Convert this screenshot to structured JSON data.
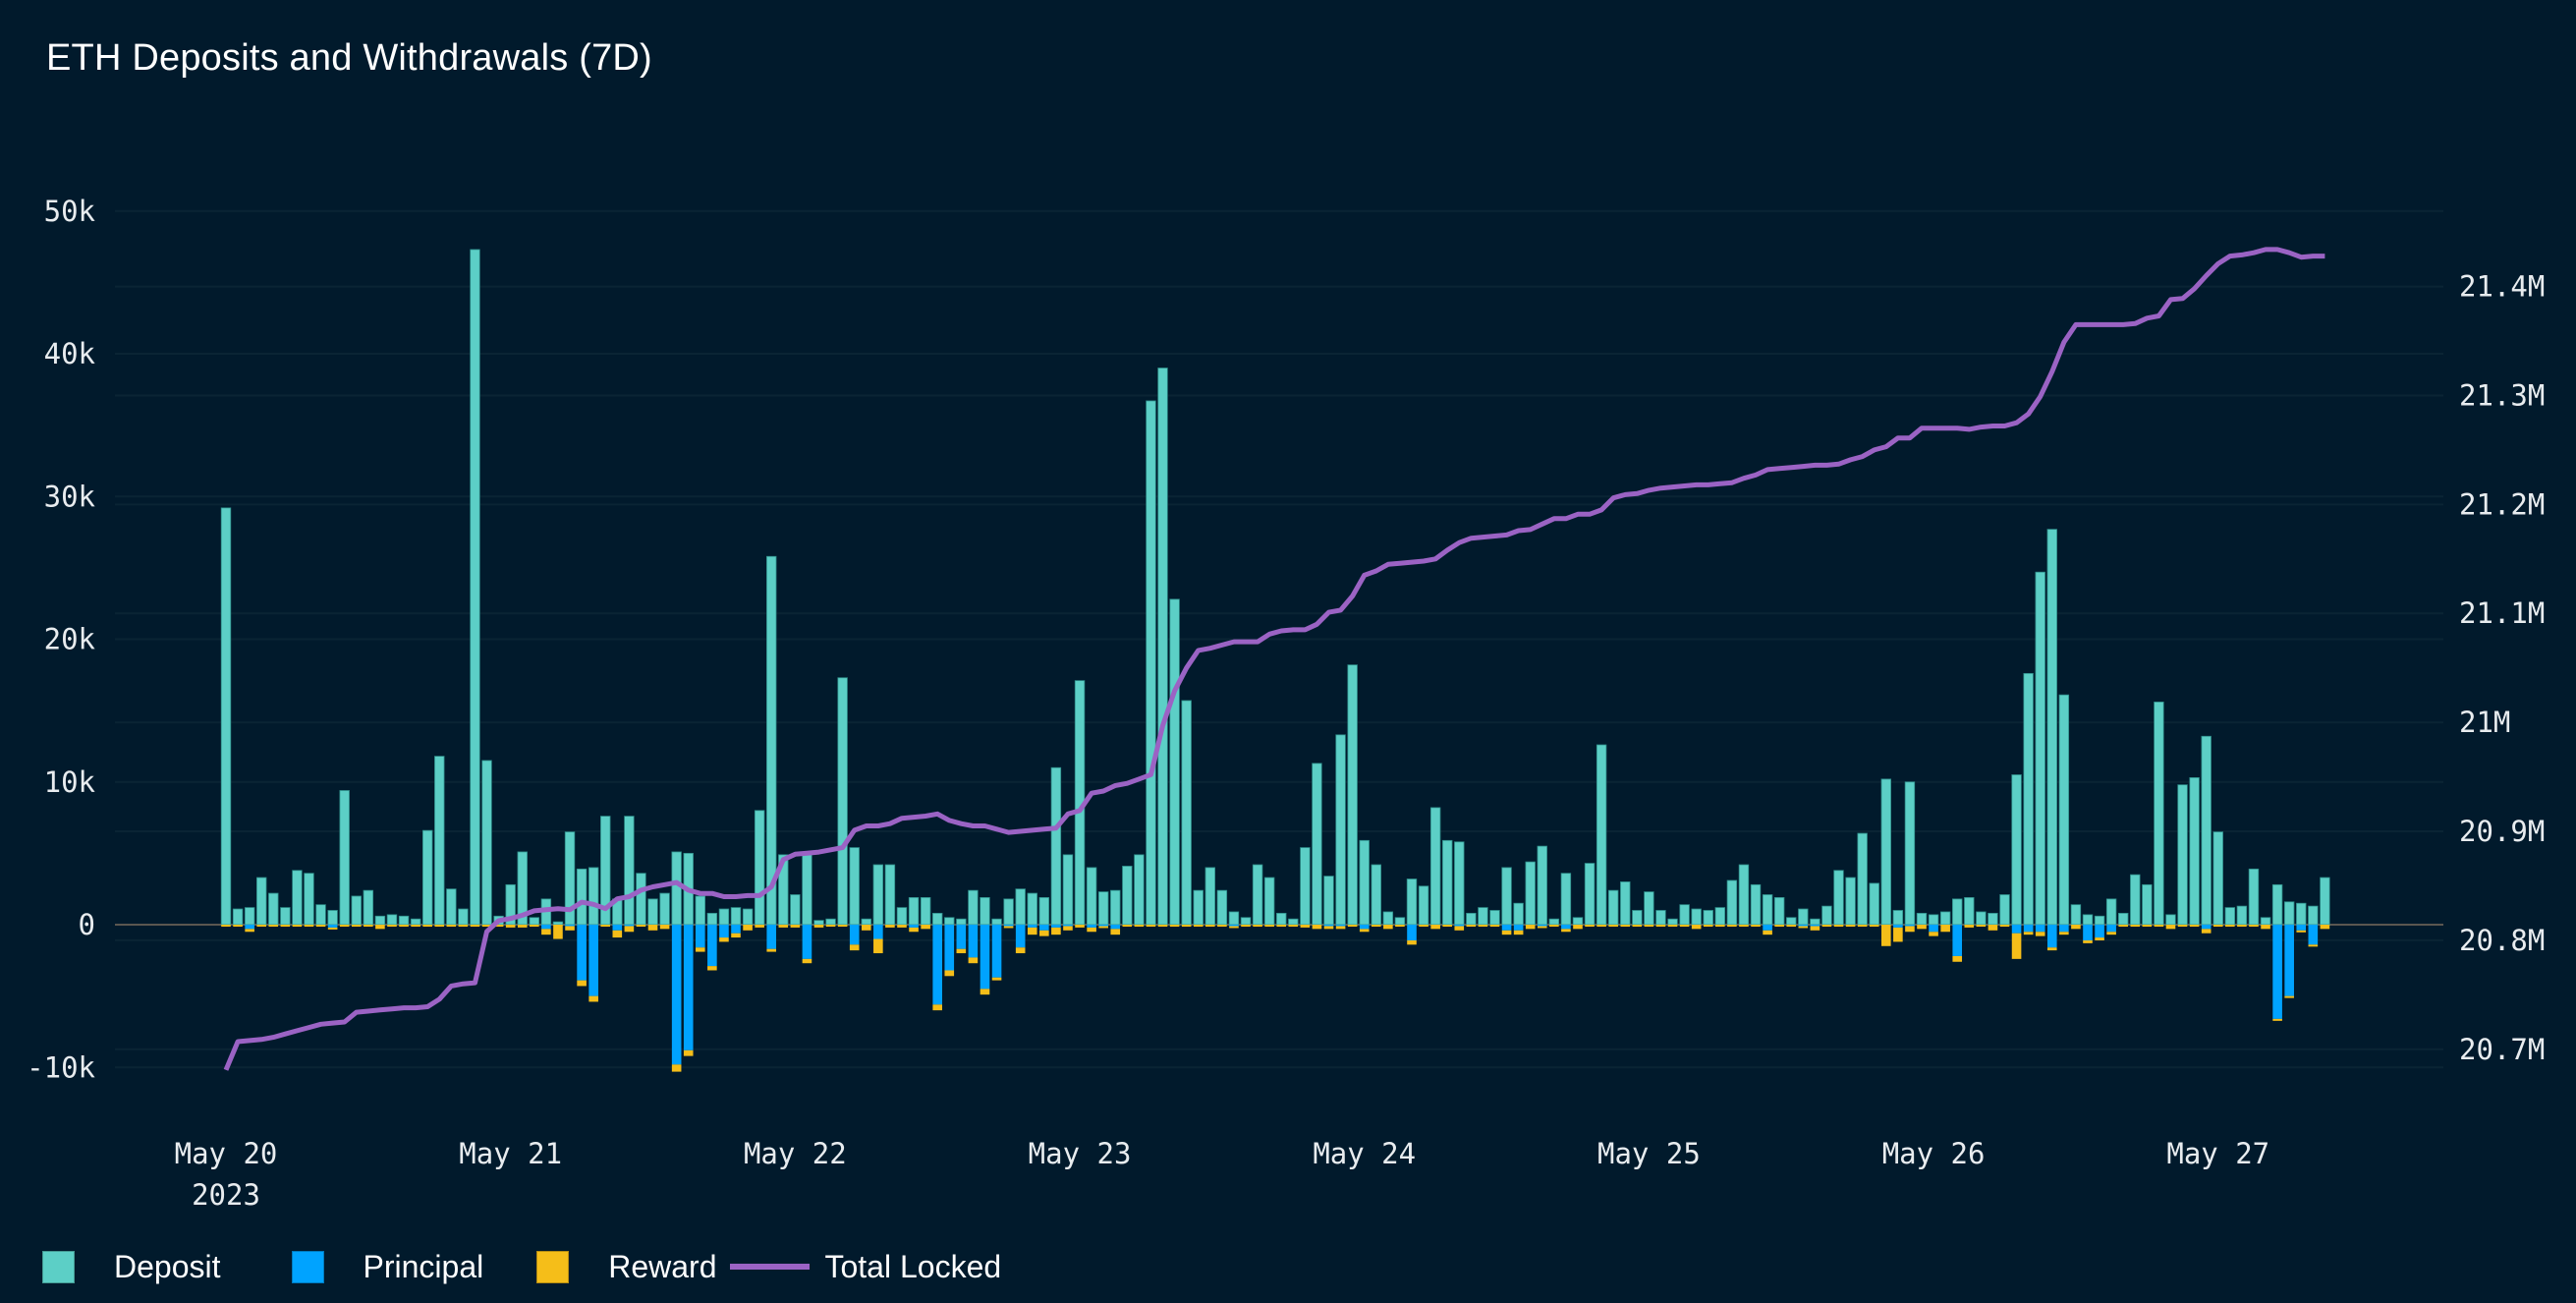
{
  "title": "ETH Deposits and Withdrawals (7D)",
  "legend": [
    {
      "label": "Deposit",
      "color": "#5ccfc6",
      "shape": "square"
    },
    {
      "label": "Principal",
      "color": "#00a3ff",
      "shape": "square"
    },
    {
      "label": "Reward",
      "color": "#f5be19",
      "shape": "square"
    },
    {
      "label": "Total Locked",
      "color": "#9b63c4",
      "shape": "line"
    }
  ],
  "chart_data": {
    "type": "bar",
    "stacked": true,
    "title": "ETH Deposits and Withdrawals (7D)",
    "x_start": "2023-05-20T00:00",
    "x_step": "1h",
    "x_ticks": [
      {
        "label": "May 20",
        "sublabel": "2023"
      },
      {
        "label": "May 21"
      },
      {
        "label": "May 22"
      },
      {
        "label": "May 23"
      },
      {
        "label": "May 24"
      },
      {
        "label": "May 25"
      },
      {
        "label": "May 26"
      },
      {
        "label": "May 27"
      }
    ],
    "y_left": {
      "ticks": [
        50000,
        40000,
        30000,
        20000,
        10000,
        0,
        -10000
      ],
      "tick_labels": [
        "50k",
        "40k",
        "30k",
        "20k",
        "10k",
        "0",
        "-10k"
      ]
    },
    "y_right": {
      "ticks": [
        21400000,
        21300000,
        21200000,
        21100000,
        21000000,
        20900000,
        20800000,
        20700000
      ],
      "tick_labels": [
        "21.4M",
        "21.3M",
        "21.2M",
        "21.1M",
        "21M",
        "20.9M",
        "20.8M",
        "20.7M"
      ]
    },
    "grid": true,
    "legend_position": "bottom-left",
    "series": [
      {
        "name": "Deposit",
        "axis": "left",
        "color": "#5ccfc6",
        "values": [
          29200,
          1100,
          1200,
          3300,
          2200,
          1200,
          3800,
          3600,
          1400,
          1000,
          9400,
          2000,
          2400,
          600,
          700,
          600,
          400,
          6600,
          11800,
          2500,
          1100,
          47300,
          11500,
          600,
          2800,
          5100,
          500,
          1800,
          200,
          6500,
          3900,
          4000,
          7600,
          1800,
          7600,
          3600,
          1800,
          2200,
          5100,
          5000,
          2000,
          800,
          1100,
          1200,
          1100,
          8000,
          25800,
          4900,
          2100,
          5000,
          300,
          400,
          17300,
          5400,
          400,
          4200,
          4200,
          1200,
          1900,
          1900,
          800,
          500,
          400,
          2400,
          1900,
          400,
          1800,
          2500,
          2200,
          1900,
          11000,
          4900,
          17100,
          4000,
          2300,
          2400,
          4100,
          4900,
          36700,
          39000,
          22800,
          15700,
          2400,
          4000,
          2400,
          900,
          500,
          4200,
          3300,
          800,
          400,
          5400,
          11300,
          3400,
          13300,
          18200,
          5900,
          4200,
          900,
          500,
          3200,
          2700,
          8200,
          5900,
          5800,
          800,
          1200,
          1000,
          4000,
          1500,
          4400,
          5500,
          400,
          3600,
          500,
          4300,
          12600,
          2400,
          3000,
          1000,
          2300,
          1000,
          400,
          1400,
          1100,
          1000,
          1200,
          3100,
          4200,
          2800,
          2100,
          1900,
          500,
          1100,
          400,
          1300,
          3800,
          3300,
          6400,
          2900,
          10200,
          1000,
          10000,
          800,
          700,
          900,
          1800,
          1900,
          900,
          800,
          2100,
          10500,
          17600,
          24700,
          27700,
          16100,
          1400,
          700,
          600,
          1800,
          800,
          3500,
          2800,
          15600,
          700,
          9800,
          10300,
          13200,
          6500,
          1200,
          1300,
          3900,
          500,
          2800,
          1600,
          1500,
          1300,
          3300
        ]
      },
      {
        "name": "Principal",
        "axis": "left",
        "color": "#00a3ff",
        "values": [
          0,
          0,
          -300,
          0,
          0,
          0,
          0,
          0,
          0,
          -200,
          0,
          0,
          0,
          0,
          0,
          0,
          0,
          0,
          0,
          0,
          0,
          0,
          0,
          0,
          0,
          0,
          0,
          -300,
          0,
          -100,
          -3900,
          -5000,
          0,
          -400,
          -100,
          0,
          0,
          0,
          -9800,
          -8800,
          -1600,
          -2900,
          -900,
          -600,
          0,
          0,
          -1700,
          0,
          0,
          -2400,
          0,
          0,
          0,
          -1400,
          0,
          -1000,
          0,
          0,
          -200,
          0,
          -5600,
          -3200,
          -1700,
          -2300,
          -4500,
          -3700,
          -100,
          -1600,
          -200,
          -400,
          -200,
          -100,
          0,
          -200,
          -100,
          -300,
          0,
          0,
          0,
          0,
          0,
          0,
          0,
          0,
          0,
          -100,
          0,
          0,
          0,
          0,
          0,
          0,
          0,
          -100,
          -100,
          0,
          -300,
          0,
          0,
          0,
          -1100,
          0,
          0,
          0,
          -100,
          0,
          0,
          0,
          -400,
          -400,
          0,
          -100,
          0,
          -300,
          0,
          0,
          0,
          0,
          0,
          0,
          0,
          0,
          0,
          0,
          0,
          0,
          0,
          0,
          0,
          0,
          -400,
          0,
          0,
          -100,
          -100,
          0,
          0,
          0,
          0,
          0,
          0,
          -200,
          -100,
          0,
          -500,
          0,
          -2200,
          0,
          0,
          0,
          0,
          -600,
          -500,
          -500,
          -1600,
          -500,
          0,
          -1100,
          -900,
          -500,
          0,
          0,
          0,
          0,
          0,
          0,
          0,
          -300,
          0,
          0,
          0,
          0,
          0,
          -6600,
          -5000,
          -400,
          -1400,
          0
        ]
      },
      {
        "name": "Reward",
        "axis": "left",
        "color": "#f5be19",
        "values": [
          -100,
          -100,
          -200,
          -100,
          -100,
          -100,
          -100,
          -100,
          -100,
          -100,
          -100,
          -100,
          -100,
          -300,
          -100,
          -100,
          -100,
          -100,
          -100,
          -100,
          -100,
          -100,
          -100,
          -100,
          -200,
          -200,
          -100,
          -400,
          -1000,
          -300,
          -400,
          -400,
          -100,
          -500,
          -400,
          -100,
          -400,
          -300,
          -500,
          -400,
          -300,
          -300,
          -300,
          -300,
          -400,
          -200,
          -200,
          -200,
          -200,
          -300,
          -200,
          -100,
          -100,
          -400,
          -400,
          -1000,
          -200,
          -200,
          -300,
          -300,
          -400,
          -400,
          -300,
          -400,
          -400,
          -200,
          -100,
          -400,
          -500,
          -400,
          -500,
          -300,
          -200,
          -300,
          -100,
          -400,
          -100,
          -100,
          -100,
          -100,
          -100,
          -100,
          -100,
          -100,
          -100,
          -100,
          -100,
          -100,
          -100,
          -100,
          -100,
          -200,
          -300,
          -200,
          -200,
          -100,
          -200,
          -100,
          -300,
          -100,
          -300,
          -100,
          -300,
          -100,
          -300,
          -100,
          -100,
          -100,
          -300,
          -300,
          -300,
          -100,
          -100,
          -200,
          -300,
          -100,
          -100,
          -100,
          -100,
          -100,
          -100,
          -100,
          -100,
          -100,
          -300,
          -100,
          -100,
          -100,
          -100,
          -100,
          -300,
          -100,
          -100,
          -100,
          -300,
          -100,
          -100,
          -100,
          -100,
          -100,
          -1500,
          -1000,
          -400,
          -300,
          -300,
          -500,
          -400,
          -200,
          -100,
          -400,
          -100,
          -1800,
          -200,
          -300,
          -200,
          -200,
          -300,
          -200,
          -200,
          -200,
          -100,
          -100,
          -100,
          -100,
          -300,
          -100,
          -100,
          -300,
          -100,
          -100,
          -100,
          -100,
          -300,
          -100,
          -100,
          -100,
          -100,
          -300
        ]
      },
      {
        "name": "Total Locked",
        "axis": "right",
        "type": "line",
        "color": "#9b63c4",
        "values": [
          20681000,
          20707000,
          20708000,
          20709000,
          20711000,
          20714000,
          20717000,
          20720000,
          20723000,
          20724000,
          20725000,
          20734000,
          20735000,
          20736000,
          20737000,
          20738000,
          20738000,
          20739000,
          20746000,
          20758000,
          20760000,
          20761000,
          20808000,
          20818000,
          20820000,
          20823000,
          20827000,
          20828000,
          20829000,
          20828000,
          20835000,
          20833000,
          20829000,
          20838000,
          20840000,
          20846000,
          20849000,
          20851000,
          20853000,
          20846000,
          20843000,
          20843000,
          20840000,
          20840000,
          20841000,
          20841000,
          20849000,
          20874000,
          20879000,
          20880000,
          20881000,
          20883000,
          20885000,
          20901000,
          20905000,
          20905000,
          20907000,
          20912000,
          20913000,
          20914000,
          20916000,
          20910000,
          20907000,
          20905000,
          20905000,
          20902000,
          20899000,
          20900000,
          20901000,
          20902000,
          20903000,
          20916000,
          20919000,
          20935000,
          20937000,
          20942000,
          20944000,
          20948000,
          20952000,
          20997000,
          21029000,
          21050000,
          21066000,
          21068000,
          21071000,
          21074000,
          21074000,
          21074000,
          21081000,
          21084000,
          21085000,
          21085000,
          21090000,
          21101000,
          21103000,
          21116000,
          21135000,
          21139000,
          21145000,
          21146000,
          21147000,
          21148000,
          21150000,
          21158000,
          21165000,
          21169000,
          21170000,
          21171000,
          21172000,
          21176000,
          21177000,
          21182000,
          21187000,
          21187000,
          21191000,
          21191000,
          21195000,
          21206000,
          21209000,
          21210000,
          21213000,
          21215000,
          21216000,
          21217000,
          21218000,
          21218000,
          21219000,
          21220000,
          21224000,
          21227000,
          21232000,
          21233000,
          21234000,
          21235000,
          21236000,
          21236000,
          21237000,
          21241000,
          21244000,
          21250000,
          21253000,
          21261000,
          21261000,
          21270000,
          21270000,
          21270000,
          21270000,
          21269000,
          21271000,
          21272000,
          21272000,
          21275000,
          21283000,
          21299000,
          21322000,
          21349000,
          21365000,
          21365000,
          21365000,
          21365000,
          21365000,
          21366000,
          21371000,
          21373000,
          21388000,
          21389000,
          21398000,
          21410000,
          21421000,
          21428000,
          21429000,
          21431000,
          21434000,
          21434000,
          21431000,
          21427000,
          21428000,
          21428000
        ]
      }
    ]
  }
}
